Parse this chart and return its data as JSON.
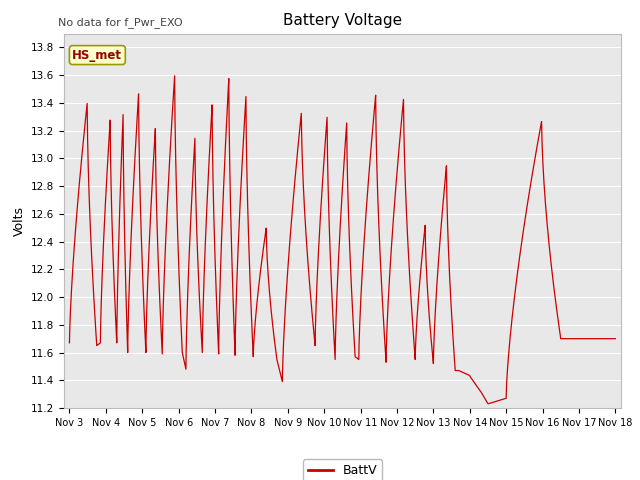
{
  "title": "Battery Voltage",
  "ylabel": "Volts",
  "note": "No data for f_Pwr_EXO",
  "legend_label": "BattV",
  "line_color": "#cc0000",
  "bg_color": "#e8e8e8",
  "hs_met_label": "HS_met",
  "hs_met_bg": "#ffffcc",
  "hs_met_border": "#999900",
  "ylim": [
    11.2,
    13.9
  ],
  "yticks": [
    11.2,
    11.4,
    11.6,
    11.8,
    12.0,
    12.2,
    12.4,
    12.6,
    12.8,
    13.0,
    13.2,
    13.4,
    13.6,
    13.8
  ],
  "xtick_labels": [
    "Nov 3",
    "Nov 4",
    "Nov 5",
    "Nov 6",
    "Nov 7",
    "Nov 8",
    "Nov 9",
    "Nov 10",
    "Nov 11",
    "Nov 12",
    "Nov 13",
    "Nov 14",
    "Nov 15",
    "Nov 16",
    "Nov 17",
    "Nov 18"
  ],
  "xtick_positions": [
    0,
    1,
    2,
    3,
    4,
    5,
    6,
    7,
    8,
    9,
    10,
    11,
    12,
    13,
    14,
    15
  ],
  "figsize": [
    6.4,
    4.8
  ],
  "dpi": 100
}
